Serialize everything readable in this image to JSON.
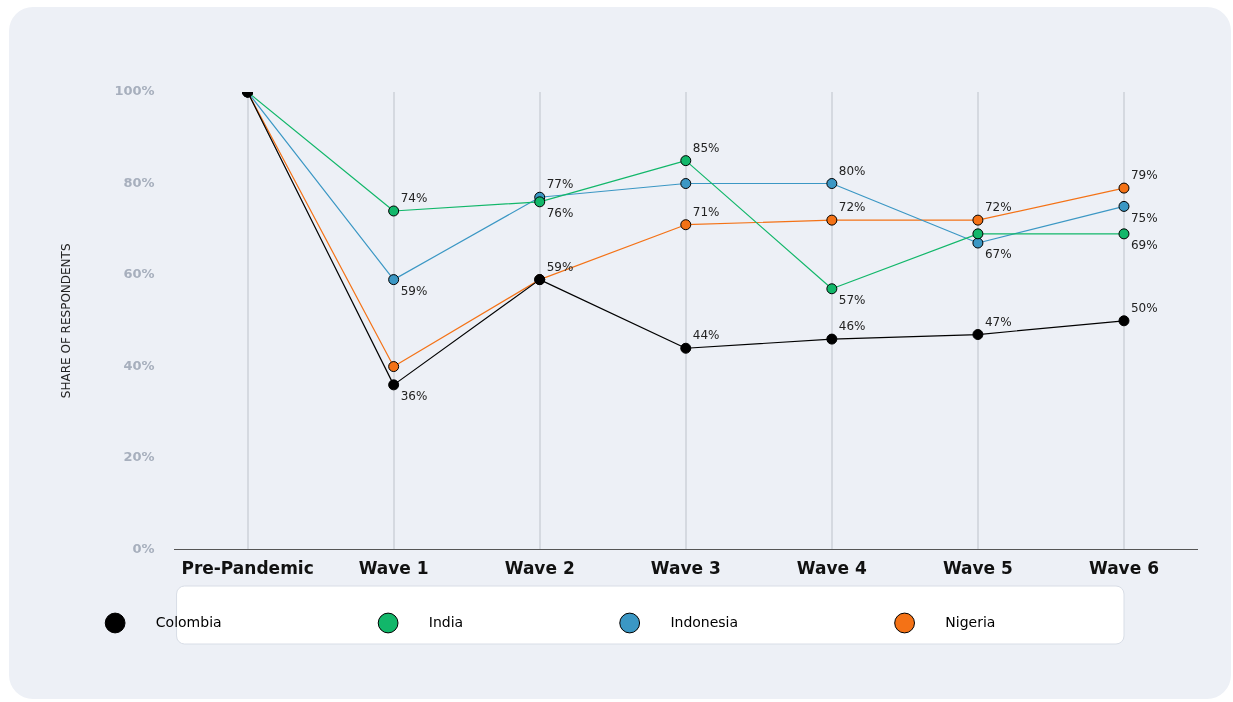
{
  "chart_data": {
    "type": "line",
    "ylabel": "SHARE OF RESPONDENTS",
    "categories": [
      "Pre-Pandemic",
      "Wave 1",
      "Wave 2",
      "Wave 3",
      "Wave 4",
      "Wave 5",
      "Wave 6"
    ],
    "series": [
      {
        "name": "Colombia",
        "color": "#000000",
        "values": [
          100,
          36,
          59,
          44,
          46,
          47,
          50
        ],
        "value_labels": [
          null,
          "36%",
          "59%",
          "44%",
          "46%",
          "47%",
          "50%"
        ]
      },
      {
        "name": "India",
        "color": "#12b76a",
        "values": [
          100,
          74,
          76,
          85,
          57,
          69,
          69
        ],
        "value_labels": [
          null,
          "74%",
          "76%",
          "85%",
          "57%",
          null,
          "69%"
        ]
      },
      {
        "name": "Indonesia",
        "color": "#3b97c4",
        "values": [
          100,
          59,
          77,
          80,
          80,
          67,
          75
        ],
        "value_labels": [
          null,
          "59%",
          "77%",
          null,
          "80%",
          "67%",
          "75%"
        ]
      },
      {
        "name": "Nigeria",
        "color": "#f47216",
        "values": [
          100,
          40,
          59,
          71,
          72,
          72,
          79
        ],
        "value_labels": [
          null,
          null,
          null,
          "71%",
          "72%",
          "72%",
          "79%"
        ]
      }
    ],
    "ylim": [
      0,
      100
    ],
    "yticks": [
      {
        "value": 0,
        "label": "0%"
      },
      {
        "value": 20,
        "label": "20%"
      },
      {
        "value": 40,
        "label": "40%"
      },
      {
        "value": 60,
        "label": "60%"
      },
      {
        "value": 80,
        "label": "80%"
      },
      {
        "value": 100,
        "label": "100%"
      }
    ],
    "grid": "x",
    "legend": "bottom",
    "marker": "circle",
    "line_style": "solid"
  }
}
